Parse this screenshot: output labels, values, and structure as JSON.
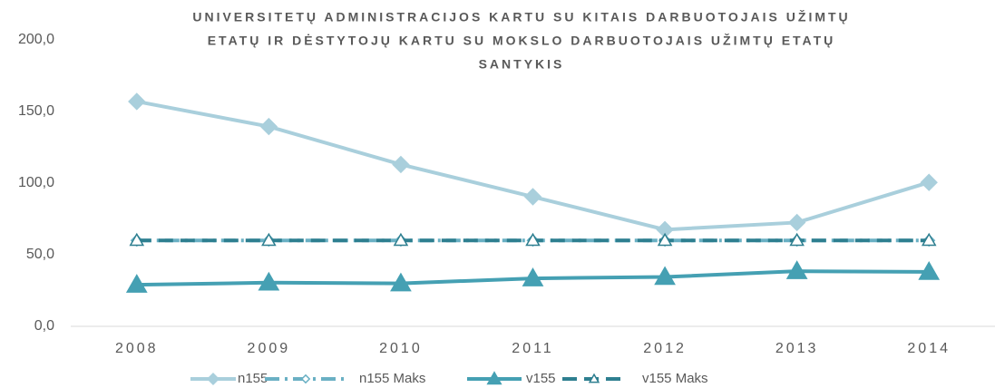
{
  "chart_data": {
    "type": "line",
    "title": [
      "UNIVERSITETŲ ADMINISTRACIJOS KARTU SU KITAIS DARBUOTOJAIS UŽIMTŲ",
      "ETATŲ IR DĖSTYTOJŲ KARTU SU MOKSLO DARBUOTOJAIS UŽIMTŲ ETATŲ",
      "SANTYKIS"
    ],
    "categories": [
      "2008",
      "2009",
      "2010",
      "2011",
      "2012",
      "2013",
      "2014"
    ],
    "series": [
      {
        "name": "n155",
        "color": "#a9cfdc",
        "values": [
          157,
          139.5,
          113,
          90.5,
          67.5,
          72.5,
          100.5
        ]
      },
      {
        "name": "n155 Maks",
        "color": "#6ab0c4",
        "values": [
          60,
          60,
          60,
          60,
          60,
          60,
          60
        ]
      },
      {
        "name": "v155",
        "color": "#45a0b3",
        "values": [
          29,
          30.5,
          30,
          33.5,
          34.5,
          38.5,
          38
        ]
      },
      {
        "name": "v155 Maks",
        "color": "#2e7f90",
        "values": [
          60,
          60,
          60,
          60,
          60,
          60,
          60
        ]
      }
    ],
    "ylim": [
      0,
      200
    ],
    "yticks": [
      {
        "value": 0,
        "label": "0,0"
      },
      {
        "value": 50,
        "label": "50,0"
      },
      {
        "value": 100,
        "label": "100,0"
      },
      {
        "value": 150,
        "label": "150,0"
      },
      {
        "value": 200,
        "label": "200,0"
      }
    ],
    "grid": false
  }
}
